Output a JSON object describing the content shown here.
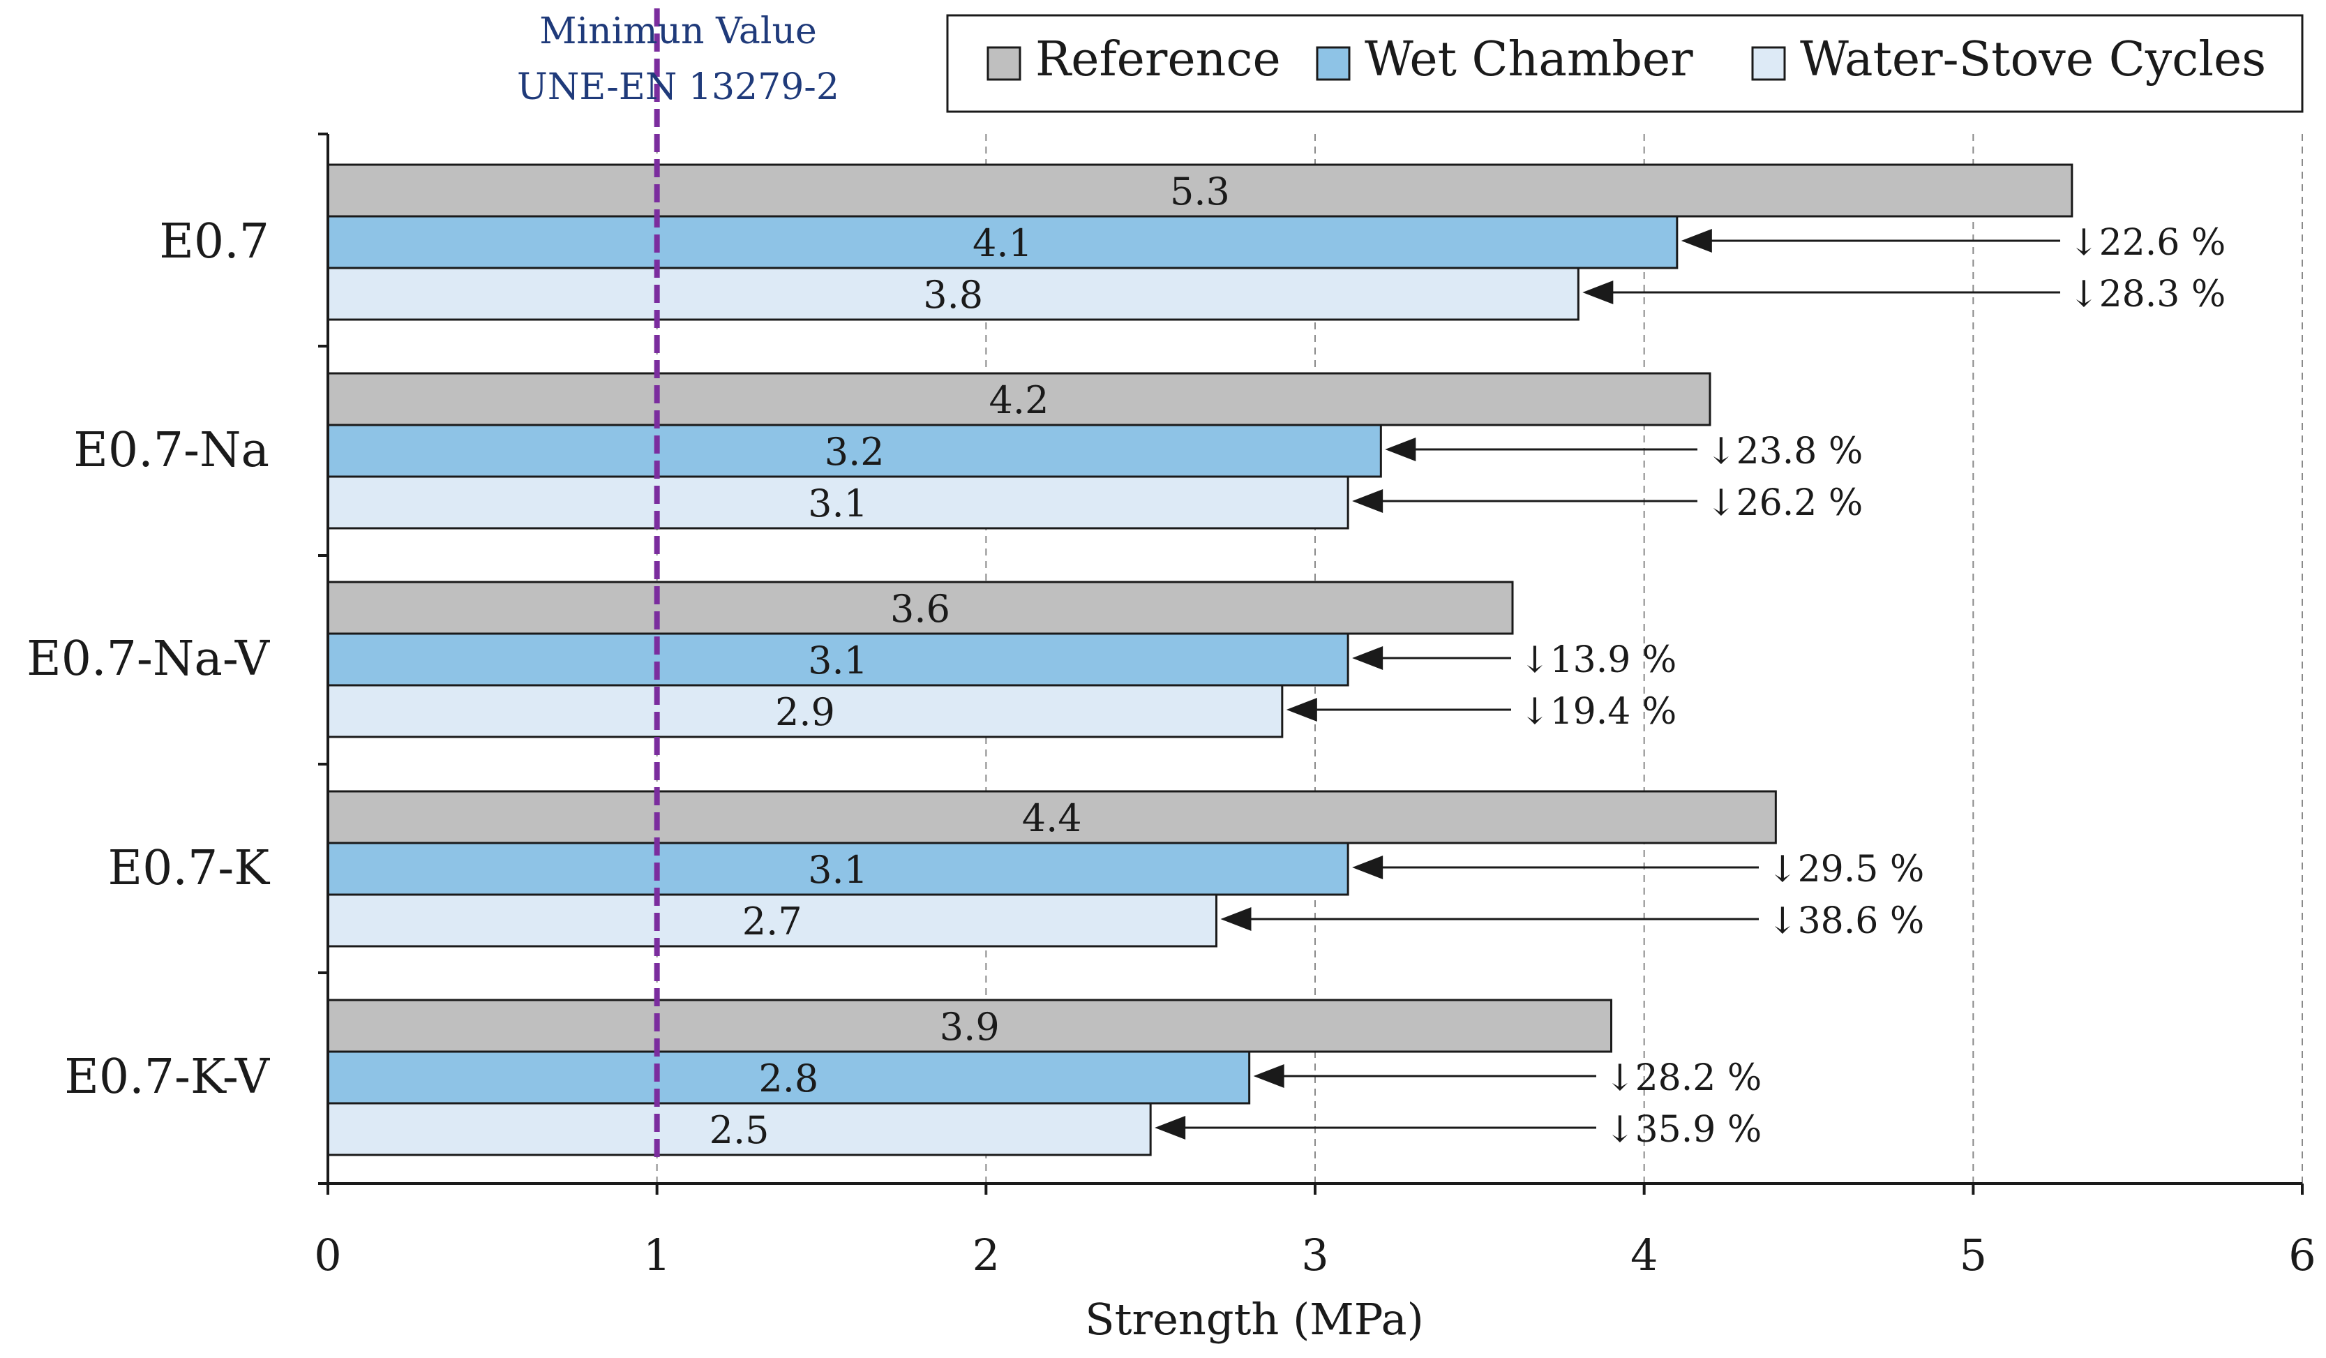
{
  "chart_data": {
    "type": "bar",
    "orientation": "horizontal",
    "categories": [
      "E0.7",
      "E0.7-Na",
      "E0.7-Na-V",
      "E0.7-K",
      "E0.7-K-V"
    ],
    "series": [
      {
        "name": "Reference",
        "color": "#bfbfbf",
        "values": [
          5.3,
          4.2,
          3.6,
          4.4,
          3.9
        ]
      },
      {
        "name": "Wet Chamber",
        "color": "#8ec3e6",
        "values": [
          4.1,
          3.2,
          3.1,
          3.1,
          2.8
        ]
      },
      {
        "name": "Water-Stove Cycles",
        "color": "#ddeaf6",
        "values": [
          3.8,
          3.1,
          2.9,
          2.7,
          2.5
        ]
      }
    ],
    "data_labels": [
      [
        "5.3",
        "4.1",
        "3.8"
      ],
      [
        "4.2",
        "3.2",
        "3.1"
      ],
      [
        "3.6",
        "3.1",
        "2.9"
      ],
      [
        "4.4",
        "3.1",
        "2.7"
      ],
      [
        "3.9",
        "2.8",
        "2.5"
      ]
    ],
    "reductions": [
      {
        "category": "E0.7",
        "wet_chamber": "↓22.6 %",
        "water_stove": "↓28.3 %"
      },
      {
        "category": "E0.7-Na",
        "wet_chamber": "↓23.8 %",
        "water_stove": "↓26.2 %"
      },
      {
        "category": "E0.7-Na-V",
        "wet_chamber": "↓13.9 %",
        "water_stove": "↓19.4 %"
      },
      {
        "category": "E0.7-K",
        "wet_chamber": "↓29.5 %",
        "water_stove": "↓38.6 %"
      },
      {
        "category": "E0.7-K-V",
        "wet_chamber": "↓28.2 %",
        "water_stove": "↓35.9 %"
      }
    ],
    "xlabel": "Strength (MPa)",
    "ylabel": "",
    "xlim": [
      0,
      6
    ],
    "xticks": [
      "0",
      "1",
      "2",
      "3",
      "4",
      "5",
      "6"
    ],
    "grid": "vertical dashed",
    "legend_position": "top-right",
    "reference_line": {
      "value": 1,
      "color": "#7b2d9e",
      "label_line1": "Minimun Value",
      "label_line2": "UNE-EN 13279-2",
      "label_color": "#1f3a7a"
    }
  }
}
